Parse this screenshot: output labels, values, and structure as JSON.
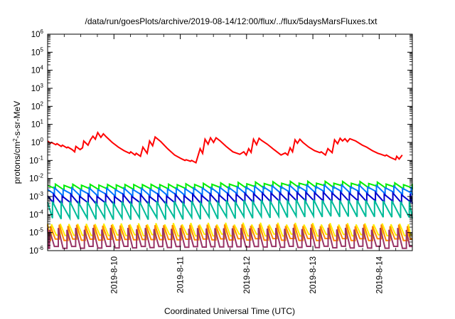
{
  "chart_data": {
    "type": "line",
    "title": "/data/run/goesPlots/archive/2019-08-14/12:00/flux/../flux/5daysMarsFluxes.txt",
    "xlabel": "Coordinated Universal Time (UTC)",
    "ylabel": "protons/cm2-s-sr-MeV",
    "y_scale": "log",
    "ylim": [
      1e-06,
      1000000.0
    ],
    "yticks": [
      {
        "base": "10",
        "exp": "-6"
      },
      {
        "base": "10",
        "exp": "-5"
      },
      {
        "base": "10",
        "exp": "-4"
      },
      {
        "base": "10",
        "exp": "-3"
      },
      {
        "base": "10",
        "exp": "-2"
      },
      {
        "base": "10",
        "exp": "-1"
      },
      {
        "base": "10",
        "exp": "0"
      },
      {
        "base": "10",
        "exp": "1"
      },
      {
        "base": "10",
        "exp": "2"
      },
      {
        "base": "10",
        "exp": "3"
      },
      {
        "base": "10",
        "exp": "4"
      },
      {
        "base": "10",
        "exp": "5"
      },
      {
        "base": "10",
        "exp": "6"
      }
    ],
    "xlim": [
      "2019-08-09 00:00",
      "2019-08-14 12:00"
    ],
    "xticks": [
      "2019-8-10",
      "2019-8-11",
      "2019-8-12",
      "2019-8-13",
      "2019-8-14"
    ],
    "grid": false,
    "series": [
      {
        "color": "#ff0000",
        "points": [
          [
            "2019-08-09 00:00",
            1.2
          ],
          [
            "2019-08-09 00:58",
            0.9
          ],
          [
            "2019-08-09 01:24",
            1.0
          ],
          [
            "2019-08-09 02:57",
            0.75
          ],
          [
            "2019-08-09 03:23",
            0.85
          ],
          [
            "2019-08-09 04:55",
            0.6
          ],
          [
            "2019-08-09 05:21",
            0.7
          ],
          [
            "2019-08-09 06:55",
            0.5
          ],
          [
            "2019-08-09 07:20",
            0.55
          ],
          [
            "2019-08-09 08:53",
            0.4
          ],
          [
            "2019-08-09 09:46",
            0.3
          ],
          [
            "2019-08-09 10:13",
            0.6
          ],
          [
            "2019-08-09 11:45",
            0.4
          ],
          [
            "2019-08-09 12:38",
            0.5
          ],
          [
            "2019-08-09 13:05",
            1.2
          ],
          [
            "2019-08-09 14:37",
            0.7
          ],
          [
            "2019-08-09 15:31",
            1.4
          ],
          [
            "2019-08-09 16:23",
            2.2
          ],
          [
            "2019-08-09 17:16",
            1.5
          ],
          [
            "2019-08-09 18:09",
            3.5
          ],
          [
            "2019-08-09 19:16",
            1.9
          ],
          [
            "2019-08-09 20:10",
            3.0
          ],
          [
            "2019-08-09 21:17",
            2.0
          ],
          [
            "2019-08-09 23:22",
            1.0
          ],
          [
            "2019-08-10 01:34",
            0.55
          ],
          [
            "2019-08-10 03:40",
            0.35
          ],
          [
            "2019-08-10 05:39",
            0.25
          ],
          [
            "2019-08-10 06:05",
            0.3
          ],
          [
            "2019-08-10 07:37",
            0.2
          ],
          [
            "2019-08-10 08:03",
            0.25
          ],
          [
            "2019-08-10 09:36",
            0.17
          ],
          [
            "2019-08-10 10:29",
            0.55
          ],
          [
            "2019-08-10 12:01",
            0.25
          ],
          [
            "2019-08-10 12:54",
            1.2
          ],
          [
            "2019-08-10 14:00",
            0.65
          ],
          [
            "2019-08-10 14:54",
            2.0
          ],
          [
            "2019-08-10 16:59",
            1.1
          ],
          [
            "2019-08-10 19:25",
            0.45
          ],
          [
            "2019-08-10 21:57",
            0.2
          ],
          [
            "2019-08-11 00:09",
            0.13
          ],
          [
            "2019-08-11 01:42",
            0.1
          ],
          [
            "2019-08-11 02:08",
            0.11
          ],
          [
            "2019-08-11 03:41",
            0.09
          ],
          [
            "2019-08-11 04:07",
            0.1
          ],
          [
            "2019-08-11 05:40",
            0.075
          ],
          [
            "2019-08-11 07:12",
            0.45
          ],
          [
            "2019-08-11 08:05",
            0.25
          ],
          [
            "2019-08-11 08:58",
            1.5
          ],
          [
            "2019-08-11 10:04",
            0.8
          ],
          [
            "2019-08-11 10:57",
            1.8
          ],
          [
            "2019-08-11 12:03",
            1.0
          ],
          [
            "2019-08-11 12:57",
            1.8
          ],
          [
            "2019-08-11 14:29",
            1.2
          ],
          [
            "2019-08-11 16:36",
            0.6
          ],
          [
            "2019-08-11 19:01",
            0.3
          ],
          [
            "2019-08-11 20:35",
            0.25
          ],
          [
            "2019-08-11 21:33",
            0.22
          ],
          [
            "2019-08-11 22:59",
            0.3
          ],
          [
            "2019-08-11 23:53",
            0.2
          ],
          [
            "2019-08-12 00:46",
            0.45
          ],
          [
            "2019-08-12 01:38",
            0.28
          ],
          [
            "2019-08-12 02:31",
            1.5
          ],
          [
            "2019-08-12 03:38",
            0.75
          ],
          [
            "2019-08-12 04:31",
            1.7
          ],
          [
            "2019-08-12 05:24",
            1.3
          ],
          [
            "2019-08-12 07:30",
            0.8
          ],
          [
            "2019-08-12 09:55",
            0.4
          ],
          [
            "2019-08-12 12:28",
            0.2
          ],
          [
            "2019-08-12 14:00",
            0.26
          ],
          [
            "2019-08-12 14:53",
            0.2
          ],
          [
            "2019-08-12 15:46",
            0.5
          ],
          [
            "2019-08-12 16:39",
            0.3
          ],
          [
            "2019-08-12 17:32",
            1.4
          ],
          [
            "2019-08-12 18:25",
            0.9
          ],
          [
            "2019-08-12 19:18",
            1.5
          ],
          [
            "2019-08-12 20:24",
            1.0
          ],
          [
            "2019-08-12 22:30",
            0.55
          ],
          [
            "2019-08-13 00:35",
            0.35
          ],
          [
            "2019-08-13 02:34",
            0.27
          ],
          [
            "2019-08-13 03:00",
            0.3
          ],
          [
            "2019-08-13 04:33",
            0.2
          ],
          [
            "2019-08-13 05:26",
            0.45
          ],
          [
            "2019-08-13 06:58",
            0.27
          ],
          [
            "2019-08-13 07:51",
            1.4
          ],
          [
            "2019-08-13 08:58",
            0.85
          ],
          [
            "2019-08-13 09:51",
            1.7
          ],
          [
            "2019-08-13 10:44",
            1.2
          ],
          [
            "2019-08-13 11:37",
            1.6
          ],
          [
            "2019-08-13 12:30",
            1.1
          ],
          [
            "2019-08-13 13:23",
            1.6
          ],
          [
            "2019-08-13 15:29",
            1.2
          ],
          [
            "2019-08-13 17:55",
            0.7
          ],
          [
            "2019-08-13 19:27",
            0.55
          ],
          [
            "2019-08-13 21:33",
            0.35
          ],
          [
            "2019-08-13 23:32",
            0.25
          ],
          [
            "2019-08-14 00:39",
            0.22
          ],
          [
            "2019-08-14 02:11",
            0.18
          ],
          [
            "2019-08-14 02:37",
            0.2
          ],
          [
            "2019-08-14 03:57",
            0.15
          ],
          [
            "2019-08-14 05:55",
            0.11
          ],
          [
            "2019-08-14 06:21",
            0.17
          ],
          [
            "2019-08-14 07:14",
            0.12
          ],
          [
            "2019-08-14 08:20",
            0.2
          ]
        ]
      },
      {
        "color": "#00ee00",
        "profile": "saw",
        "period_hours": 3.15,
        "high": 0.0045,
        "low": 0.0025,
        "drift": [
          [
            "2019-08-09 00:00",
            1.0
          ],
          [
            "2019-08-10 00:00",
            1.0
          ],
          [
            "2019-08-11 00:00",
            1.05
          ],
          [
            "2019-08-12 00:00",
            1.25
          ],
          [
            "2019-08-12 18:00",
            1.4
          ],
          [
            "2019-08-13 18:00",
            1.35
          ],
          [
            "2019-08-14 12:00",
            1.05
          ]
        ]
      },
      {
        "color": "#0077ff",
        "profile": "saw",
        "period_hours": 3.15,
        "high": 0.0028,
        "low": 0.0012,
        "drift": [
          [
            "2019-08-09 00:00",
            1.0
          ],
          [
            "2019-08-10 00:00",
            0.95
          ],
          [
            "2019-08-11 00:00",
            1.0
          ],
          [
            "2019-08-12 00:00",
            1.25
          ],
          [
            "2019-08-12 18:00",
            1.45
          ],
          [
            "2019-08-13 18:00",
            1.4
          ],
          [
            "2019-08-14 12:00",
            1.1
          ]
        ]
      },
      {
        "color": "#0000cc",
        "profile": "saw",
        "period_hours": 3.15,
        "high": 0.0012,
        "low": 0.0004,
        "drift": [
          [
            "2019-08-09 00:00",
            1.0
          ],
          [
            "2019-08-10 00:00",
            0.95
          ],
          [
            "2019-08-11 00:00",
            1.0
          ],
          [
            "2019-08-12 00:00",
            1.2
          ],
          [
            "2019-08-12 18:00",
            1.4
          ],
          [
            "2019-08-13 18:00",
            1.35
          ],
          [
            "2019-08-14 12:00",
            1.1
          ]
        ]
      },
      {
        "color": "#00bb99",
        "profile": "saw",
        "period_hours": 3.15,
        "high": 0.0005,
        "low": 6e-05,
        "drift": [
          [
            "2019-08-09 00:00",
            1.0
          ],
          [
            "2019-08-10 00:00",
            0.95
          ],
          [
            "2019-08-11 00:00",
            1.0
          ],
          [
            "2019-08-12 00:00",
            1.15
          ],
          [
            "2019-08-12 18:00",
            1.3
          ],
          [
            "2019-08-13 18:00",
            1.25
          ],
          [
            "2019-08-14 12:00",
            1.05
          ]
        ]
      },
      {
        "color": "#ffee00",
        "profile": "spike",
        "period_hours": 3.15,
        "high": 3e-05,
        "low": 7e-06,
        "drift": [
          [
            "2019-08-09 00:00",
            1.0
          ],
          [
            "2019-08-12 00:00",
            1.05
          ],
          [
            "2019-08-14 12:00",
            1.0
          ]
        ]
      },
      {
        "color": "#ff8800",
        "profile": "spike",
        "period_hours": 3.15,
        "high": 2.5e-05,
        "low": 4e-06,
        "drift": [
          [
            "2019-08-09 00:00",
            1.0
          ],
          [
            "2019-08-12 00:00",
            1.05
          ],
          [
            "2019-08-14 12:00",
            1.0
          ]
        ]
      },
      {
        "color": "#993366",
        "profile": "spike",
        "period_hours": 3.15,
        "high": 1.6e-05,
        "low": 1.5e-06,
        "drift": [
          [
            "2019-08-09 00:00",
            1.0
          ],
          [
            "2019-08-12 00:00",
            1.1
          ],
          [
            "2019-08-14 12:00",
            1.0
          ]
        ]
      }
    ]
  }
}
